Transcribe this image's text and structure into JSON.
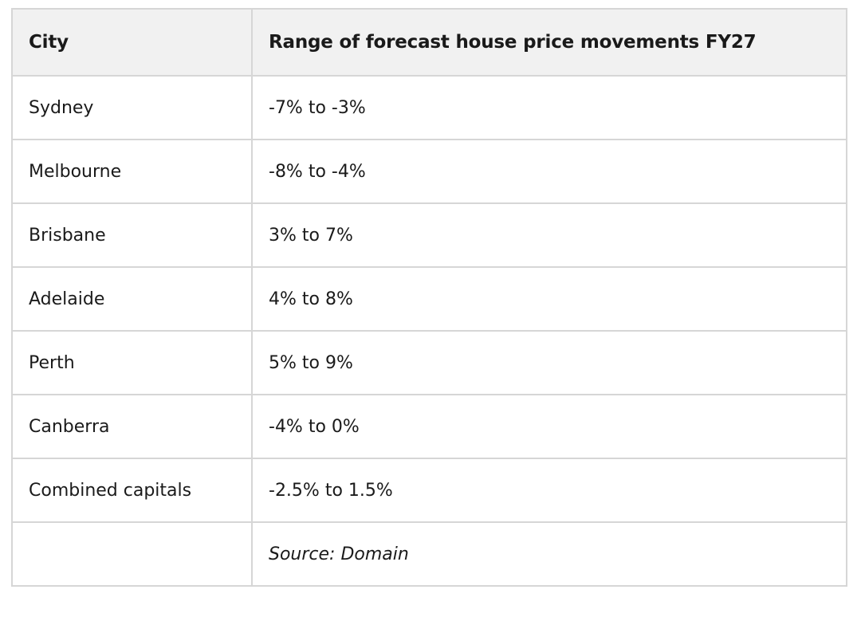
{
  "table": {
    "headers": [
      "City",
      "Range of forecast house price movements FY27"
    ],
    "rows": [
      {
        "city": "Sydney",
        "range": "-7% to -3%"
      },
      {
        "city": "Melbourne",
        "range": "-8% to -4%"
      },
      {
        "city": "Brisbane",
        "range": "3% to 7%"
      },
      {
        "city": "Adelaide",
        "range": "4% to 8%"
      },
      {
        "city": "Perth",
        "range": "5% to 9%"
      },
      {
        "city": "Canberra",
        "range": "-4% to 0%"
      },
      {
        "city": "Combined capitals",
        "range": "-2.5% to 1.5%"
      }
    ],
    "source": "Source: Domain"
  }
}
